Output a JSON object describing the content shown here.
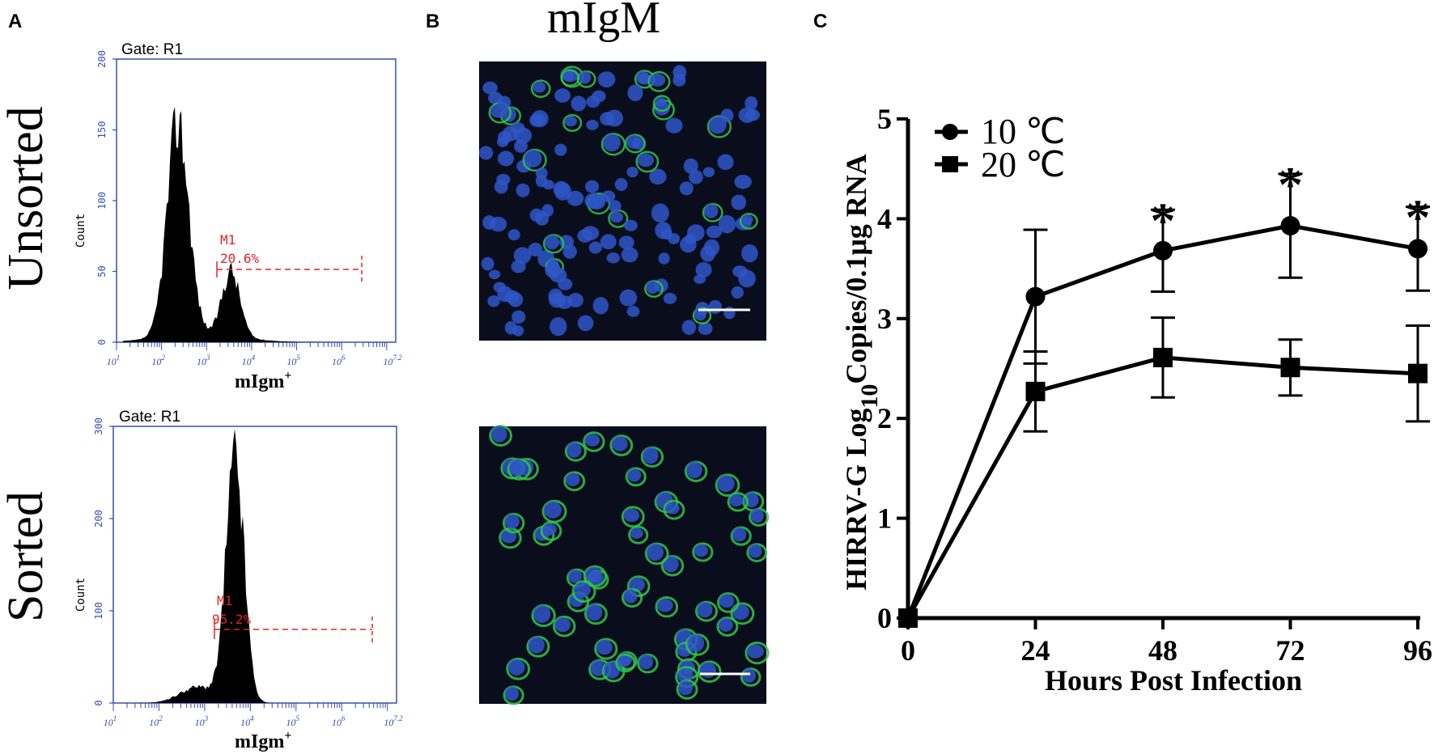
{
  "panels": {
    "a_label": "A",
    "b_label": "B",
    "c_label": "C"
  },
  "panel_a": {
    "rows": [
      {
        "row_label": "Unsorted",
        "gate": "Gate: R1",
        "ylabel": "Count",
        "xlabel": "mIgm+",
        "marker_name": "M1",
        "marker_value": "20.6%",
        "yticks": [
          "0",
          "50",
          "100",
          "150",
          "200"
        ],
        "ymax": 200
      },
      {
        "row_label": "Sorted",
        "gate": "Gate: R1",
        "ylabel": "Count",
        "xlabel": "mIgm+",
        "marker_name": "M1",
        "marker_value": "95.2%",
        "yticks": [
          "0",
          "100",
          "200",
          "300"
        ],
        "ymax": 300
      }
    ],
    "xticks": [
      "10",
      "10",
      "10",
      "10",
      "10",
      "10",
      "10"
    ],
    "xtick_exps": [
      "1",
      "2",
      "3",
      "4",
      "5",
      "6",
      "7.2"
    ],
    "colors": {
      "frame": "#3a4db0",
      "marker": "#e0222a",
      "hist": "#000000"
    }
  },
  "panel_b": {
    "title": "mIgM",
    "images": [
      "fluorescence-micrograph-unsorted",
      "fluorescence-micrograph-sorted"
    ],
    "colors": {
      "nuclei": "#2f56c8",
      "membrane": "#2fc84a",
      "background": "#0a0d1c"
    }
  },
  "chart_data": [
    {
      "type": "line",
      "title": "",
      "xlabel": "Hours Post Infection",
      "ylabel": "HIRRV-G Log10Copies/0.1μg RNA",
      "x": [
        0,
        24,
        48,
        72,
        96
      ],
      "xlim": [
        0,
        96
      ],
      "ylim": [
        0,
        5
      ],
      "xticks": [
        "0",
        "24",
        "48",
        "72",
        "96"
      ],
      "yticks": [
        "0",
        "1",
        "2",
        "3",
        "4",
        "5"
      ],
      "legend_position": "top-left",
      "series": [
        {
          "name": "10 ℃",
          "marker": "circle",
          "values": [
            0,
            3.22,
            3.68,
            3.93,
            3.7
          ],
          "errors": [
            0,
            0.67,
            0.41,
            0.52,
            0.42
          ]
        },
        {
          "name": "20 ℃",
          "marker": "square",
          "values": [
            0,
            2.27,
            2.61,
            2.51,
            2.45
          ],
          "errors": [
            0,
            0.4,
            0.4,
            0.28,
            0.48
          ]
        }
      ],
      "annotations": [
        {
          "x": 48,
          "text": "*"
        },
        {
          "x": 72,
          "text": "*"
        },
        {
          "x": 96,
          "text": "*"
        }
      ],
      "grid": false,
      "colors": {
        "line": "#000000"
      }
    }
  ]
}
